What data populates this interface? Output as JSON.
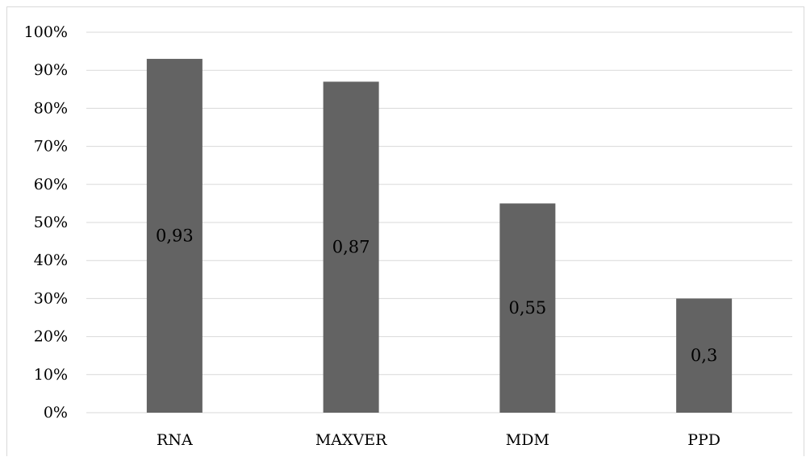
{
  "chart_data": {
    "type": "bar",
    "categories": [
      "RNA",
      "MAXVER",
      "MDM",
      "PPD"
    ],
    "values": [
      0.93,
      0.87,
      0.55,
      0.3
    ],
    "data_labels": [
      "0,93",
      "0,87",
      "0,55",
      "0,3"
    ],
    "ylim": [
      0,
      1
    ],
    "yticks": [
      0,
      0.1,
      0.2,
      0.3,
      0.4,
      0.5,
      0.6,
      0.7,
      0.8,
      0.9,
      1.0
    ],
    "ytick_labels": [
      "0%",
      "10%",
      "20%",
      "30%",
      "40%",
      "50%",
      "60%",
      "70%",
      "80%",
      "90%",
      "100%"
    ],
    "grid": true,
    "legend": "none",
    "bar_color": "#636363",
    "grid_color": "#d9d9d9"
  }
}
